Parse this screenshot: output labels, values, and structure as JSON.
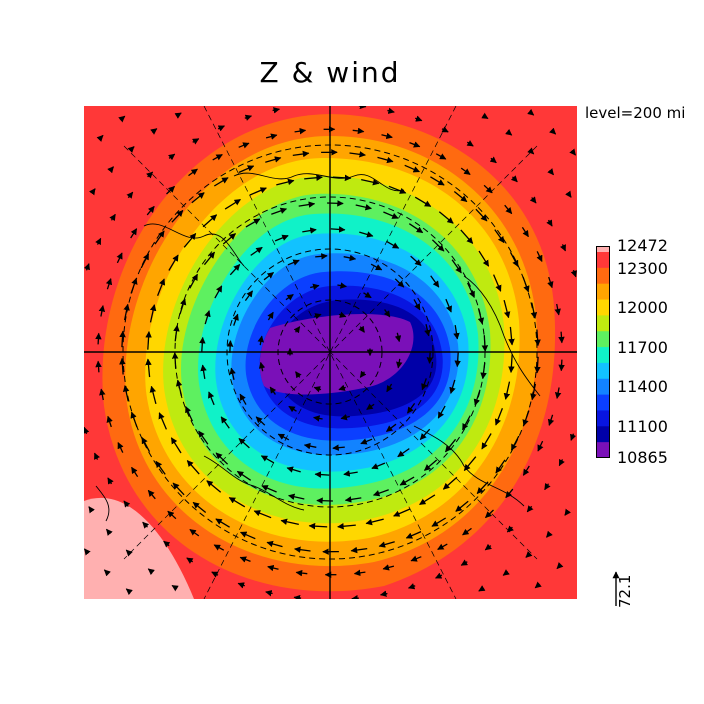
{
  "title": "Z & wind",
  "level_label": "level=200 mi",
  "colorbar": {
    "labels": [
      "12472",
      "12300",
      "12000",
      "11700",
      "11400",
      "11100",
      "10865"
    ],
    "colors": [
      "#ffb0b0",
      "#ff3838",
      "#ff6a10",
      "#ffa500",
      "#ffd700",
      "#bfea10",
      "#5ef060",
      "#10f2c8",
      "#12c2ff",
      "#1283ff",
      "#0b3fff",
      "#0815e0",
      "#0000a8",
      "#7a10b8"
    ]
  },
  "vector_scale": {
    "label": "72.1"
  }
}
